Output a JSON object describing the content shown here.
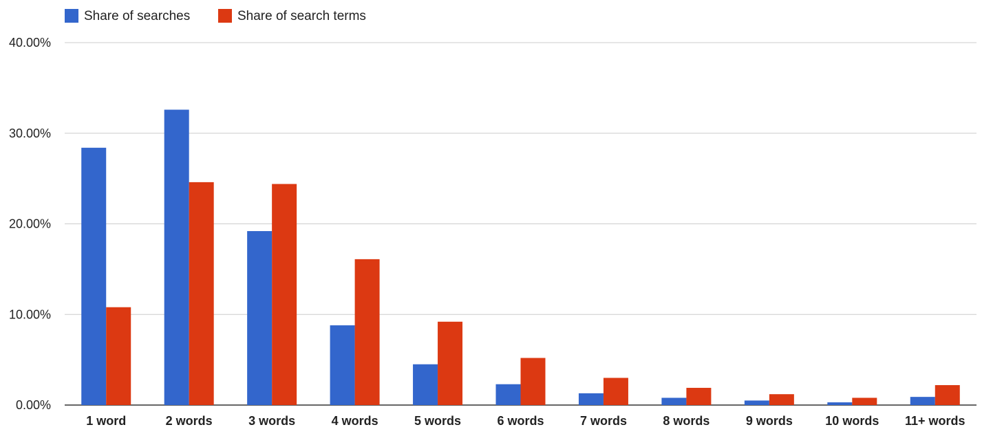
{
  "chart_data": {
    "type": "bar",
    "categories": [
      "1 word",
      "2 words",
      "3 words",
      "4 words",
      "5 words",
      "6 words",
      "7 words",
      "8 words",
      "9 words",
      "10 words",
      "11+ words"
    ],
    "series": [
      {
        "name": "Share of searches",
        "color": "#3366cc",
        "values": [
          28.4,
          32.6,
          19.2,
          8.8,
          4.5,
          2.3,
          1.3,
          0.8,
          0.5,
          0.3,
          0.9
        ]
      },
      {
        "name": "Share of search terms",
        "color": "#dc3912",
        "values": [
          10.8,
          24.6,
          24.4,
          16.1,
          9.2,
          5.2,
          3.0,
          1.9,
          1.2,
          0.8,
          2.2
        ]
      }
    ],
    "y_ticks": [
      "0.00%",
      "10.00%",
      "20.00%",
      "30.00%",
      "40.00%"
    ],
    "ylim": [
      0,
      40
    ],
    "grid": true,
    "legend_position": "top-left",
    "title": "",
    "xlabel": "",
    "ylabel": ""
  }
}
